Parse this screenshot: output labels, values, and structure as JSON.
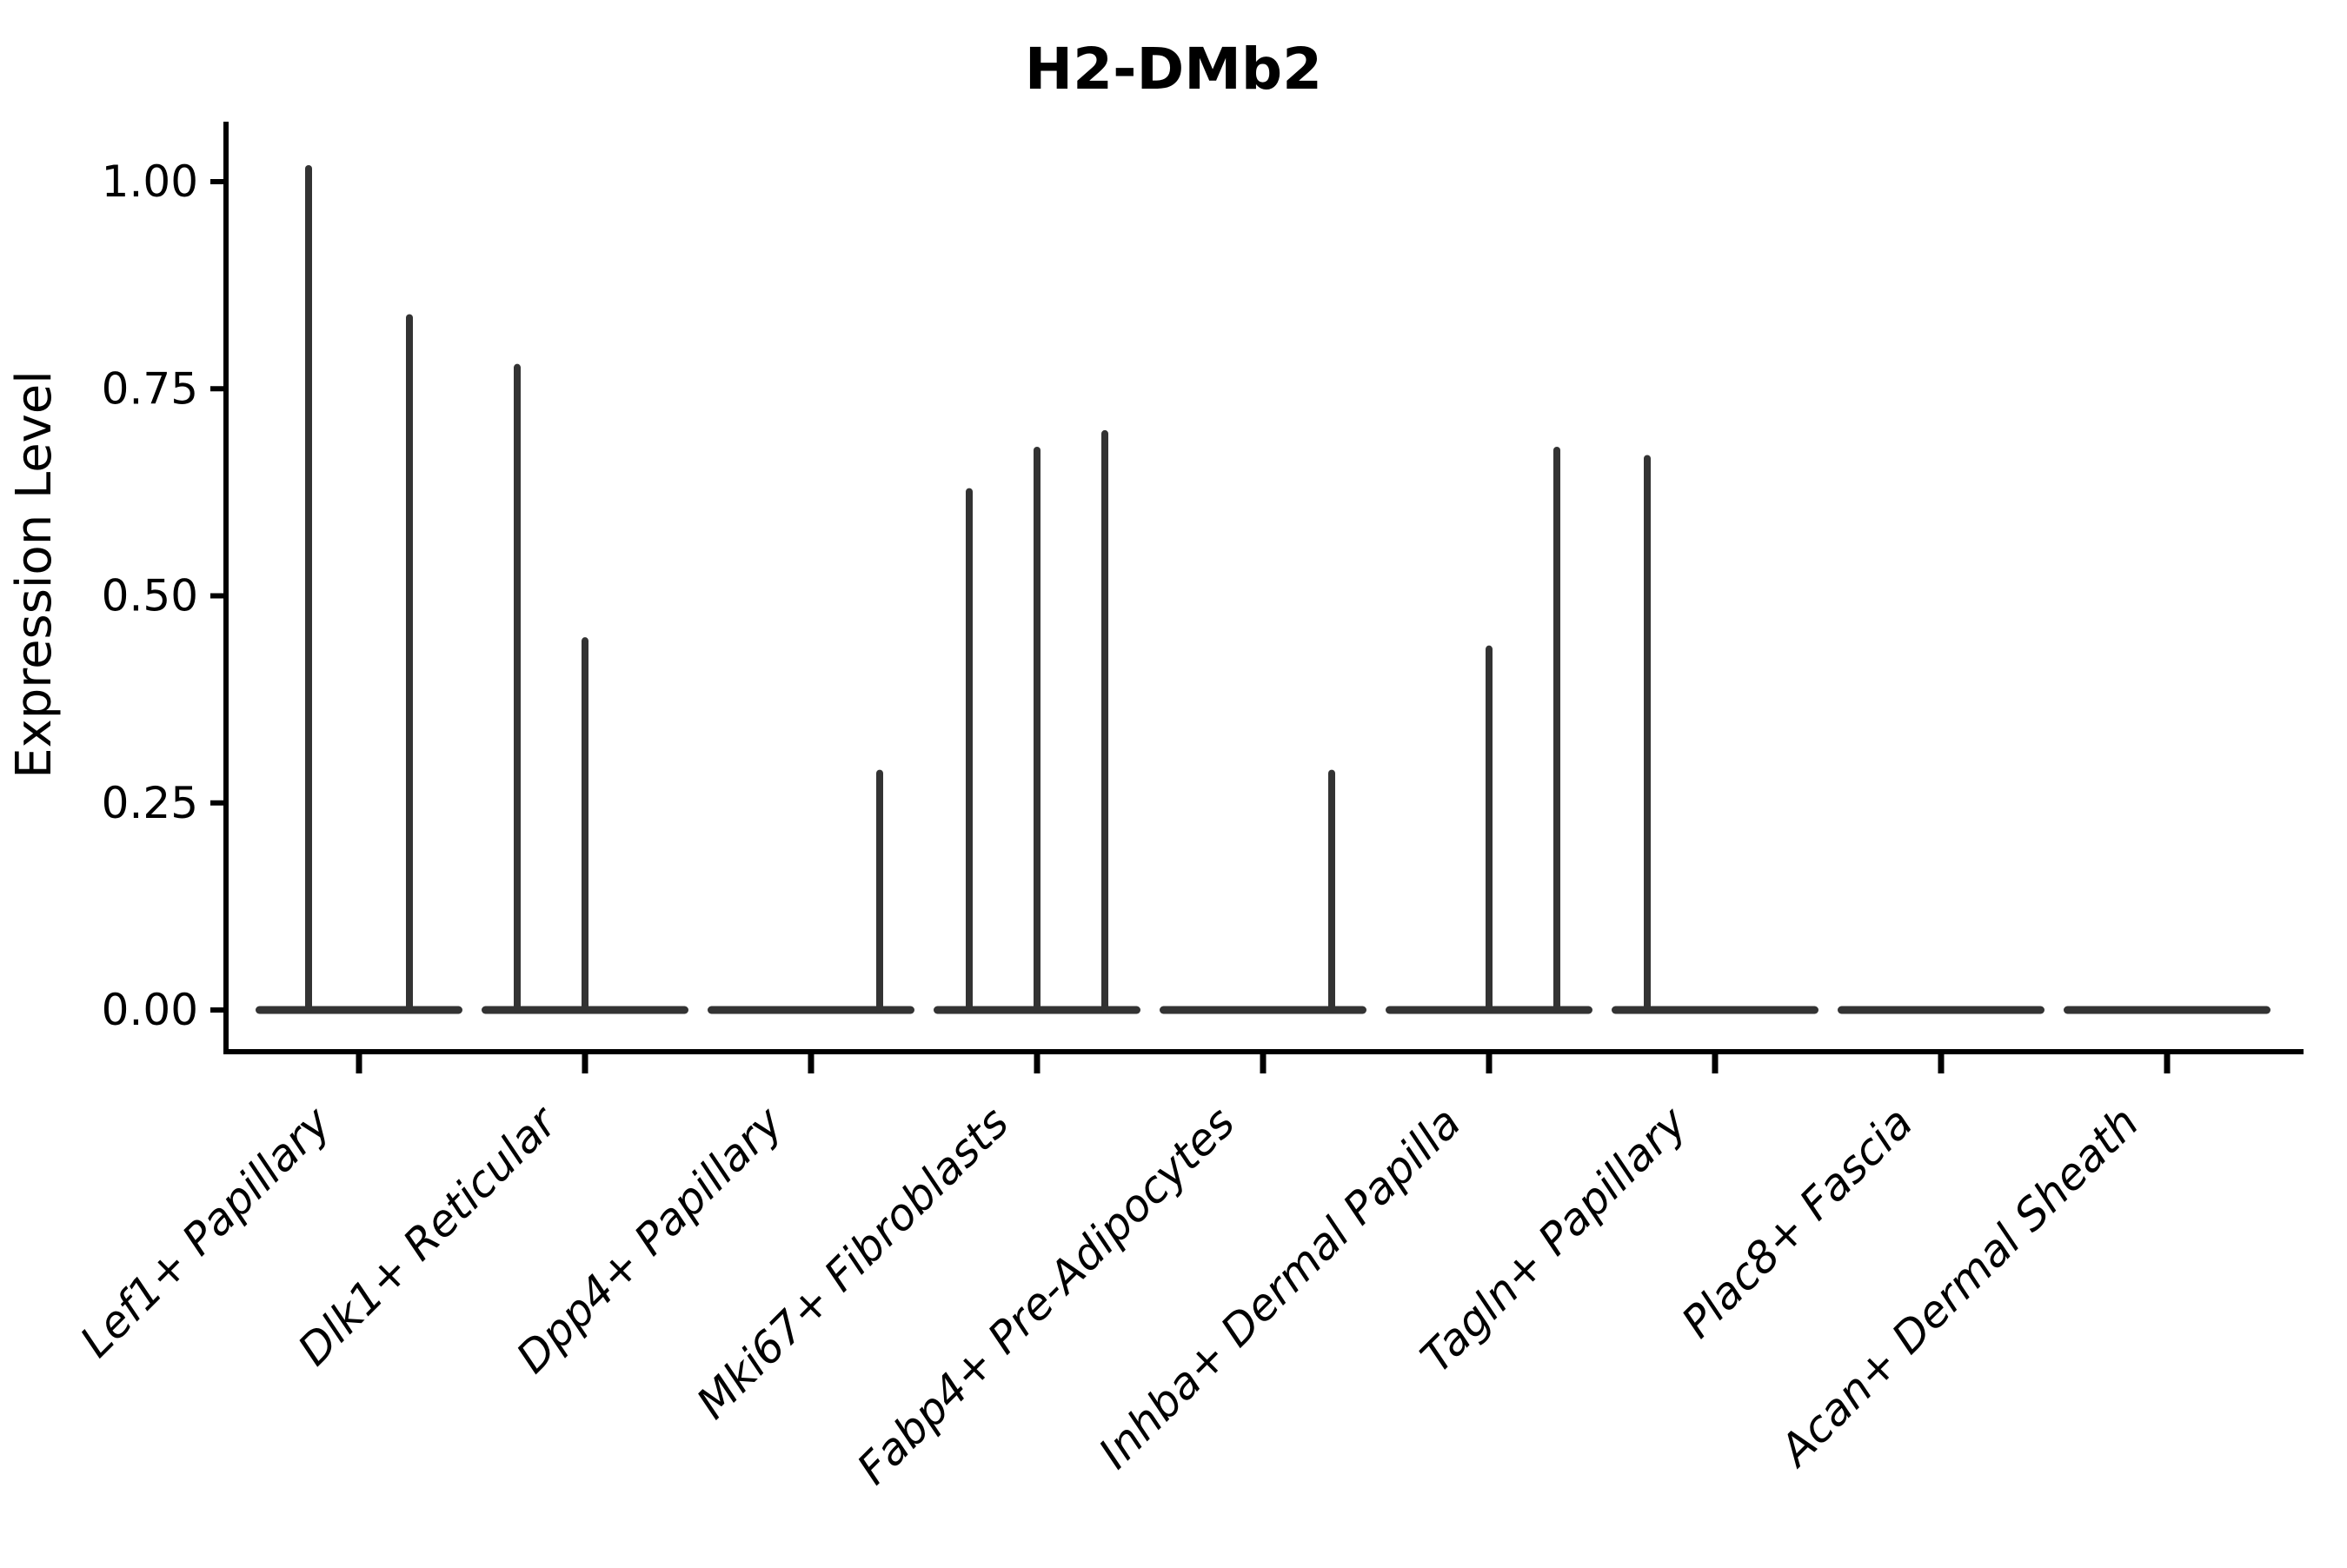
{
  "figure": {
    "title": "H2-DMb2",
    "y_axis_label": "Expression Level"
  },
  "chart_data": {
    "type": "violin",
    "title": "H2-DMb2",
    "xlabel": "",
    "ylabel": "Expression Level",
    "ylim": [
      -0.05,
      1.07
    ],
    "yticks": [
      0.0,
      0.25,
      0.5,
      0.75,
      1.0
    ],
    "ytick_labels": [
      "0.00",
      "0.25",
      "0.50",
      "0.75",
      "1.00"
    ],
    "grid": false,
    "legend_position": "none",
    "categories": [
      "Lef1+ Papillary",
      "Dlk1+ Reticular",
      "Dpp4+ Papillary",
      "Mki67+ Fibroblasts",
      "Fabp4+ Pre-Adipocytes",
      "Inhba+ Dermal Papilla",
      "Tagln+ Papillary",
      "Plac8+ Fascia",
      "Acan+ Dermal Sheath"
    ],
    "violins": [
      {
        "category": "Lef1+ Papillary",
        "baseline_value": 0,
        "spikes": [
          {
            "dx": -58,
            "max": 1.02
          },
          {
            "dx": 58,
            "max": 0.84
          }
        ]
      },
      {
        "category": "Dlk1+ Reticular",
        "baseline_value": 0,
        "spikes": [
          {
            "dx": -78,
            "max": 0.78
          },
          {
            "dx": 0,
            "max": 0.45
          }
        ]
      },
      {
        "category": "Dpp4+ Papillary",
        "baseline_value": 0,
        "spikes": [
          {
            "dx": 79,
            "max": 0.29
          }
        ]
      },
      {
        "category": "Mki67+ Fibroblasts",
        "baseline_value": 0,
        "spikes": [
          {
            "dx": -78,
            "max": 0.63
          },
          {
            "dx": 0,
            "max": 0.68
          },
          {
            "dx": 78,
            "max": 0.7
          }
        ]
      },
      {
        "category": "Fabp4+ Pre-Adipocytes",
        "baseline_value": 0,
        "spikes": [
          {
            "dx": 79,
            "max": 0.29
          }
        ]
      },
      {
        "category": "Inhba+ Dermal Papilla",
        "baseline_value": 0,
        "spikes": [
          {
            "dx": 0,
            "max": 0.44
          },
          {
            "dx": 78,
            "max": 0.68
          }
        ]
      },
      {
        "category": "Tagln+ Papillary",
        "baseline_value": 0,
        "spikes": [
          {
            "dx": -78,
            "max": 0.67
          }
        ]
      },
      {
        "category": "Plac8+ Fascia",
        "baseline_value": 0,
        "spikes": []
      },
      {
        "category": "Acan+ Dermal Sheath",
        "baseline_value": 0,
        "spikes": []
      }
    ],
    "colors": {
      "violin_stroke": "#333333",
      "axis": "#000000",
      "text": "#000000",
      "background": "#ffffff"
    }
  }
}
